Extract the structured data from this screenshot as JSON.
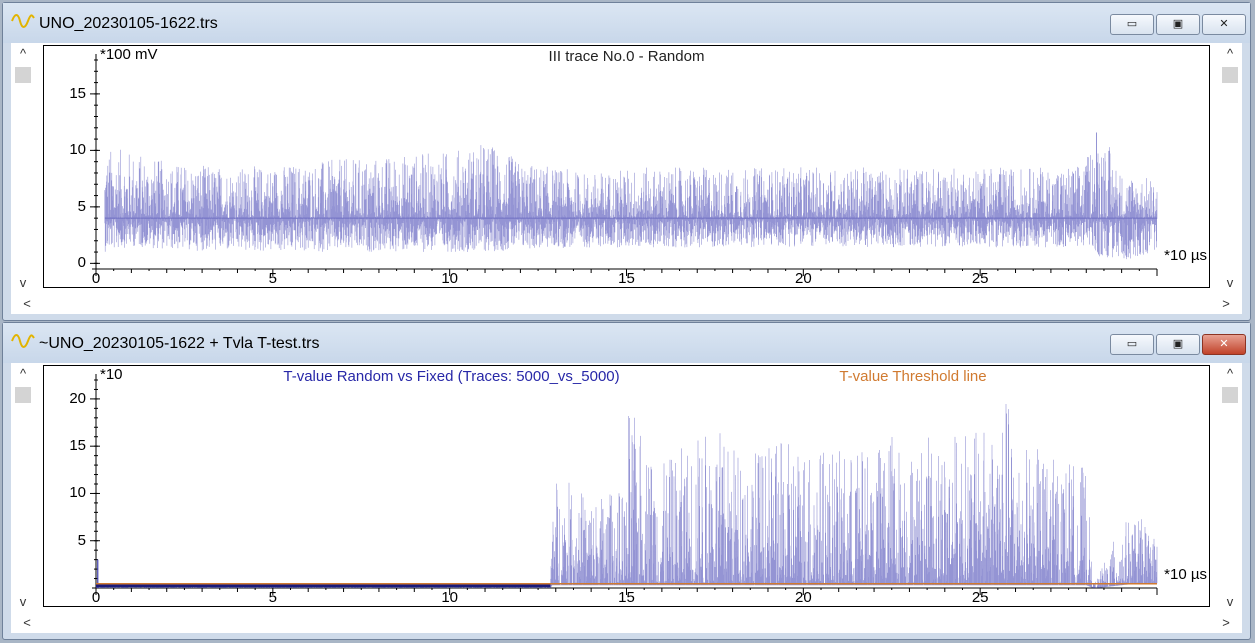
{
  "windows": [
    {
      "title": "UNO_20230105-1622.trs",
      "close_active": false,
      "y_unit": "*100 mV",
      "x_unit": "*10 µs",
      "plot_title": "III trace No.0 - Random",
      "secondary_title": "",
      "colors": {
        "trace": "#3d3db0",
        "title": "#222222",
        "threshold": "#d07a30"
      }
    },
    {
      "title": "~UNO_20230105-1622 + Tvla T-test.trs",
      "close_active": true,
      "y_unit": "*10",
      "x_unit": "*10 µs",
      "plot_title": "T-value Random vs Fixed (Traces: 5000_vs_5000)",
      "secondary_title": "T-value Threshold line",
      "colors": {
        "trace": "#3d3db0",
        "title": "#2828a8",
        "threshold": "#d07a30"
      }
    }
  ],
  "window_controls": {
    "minimize_icon": "minimize-icon",
    "maximize_icon": "maximize-icon",
    "close_icon": "close-icon"
  },
  "scroll_arrows": {
    "up": "^",
    "down": "v",
    "left": "<",
    "right": ">"
  },
  "chart_data": [
    {
      "type": "line",
      "title": "III trace No.0 - Random",
      "xlabel": "*10 µs",
      "ylabel": "*100 mV",
      "xlim": [
        0,
        30
      ],
      "ylim": [
        -0.5,
        18
      ],
      "xticks": [
        0,
        5,
        10,
        15,
        20,
        25
      ],
      "yticks": [
        0,
        5,
        10,
        15
      ],
      "grid": false,
      "series": [
        {
          "name": "",
          "envelope": {
            "x": [
              0.25,
              1,
              2,
              4,
              6,
              8,
              10,
              11.1,
              12,
              14,
              15,
              16,
              18,
              20,
              22,
              24,
              26,
              27.5,
              28,
              28.3,
              29,
              30
            ],
            "low": [
              1.0,
              1.5,
              1.2,
              1.0,
              1.0,
              1.0,
              1.0,
              1.0,
              1.2,
              1.4,
              1.4,
              1.4,
              1.4,
              1.5,
              1.4,
              1.5,
              1.4,
              1.4,
              1.6,
              0.5,
              0.2,
              1.0
            ],
            "high": [
              10.3,
              10.0,
              9.0,
              8.5,
              9.0,
              9.5,
              10.0,
              10.8,
              9.0,
              8.0,
              8.5,
              8.5,
              8.5,
              8.5,
              8.5,
              8.5,
              8.5,
              8.6,
              9.0,
              13.0,
              8.0,
              7.5
            ],
            "mean": 4.0
          }
        }
      ]
    },
    {
      "type": "line",
      "title": "T-value Random vs Fixed (Traces: 5000_vs_5000)",
      "xlabel": "*10 µs",
      "ylabel": "*10",
      "xlim": [
        0,
        30
      ],
      "ylim": [
        0,
        22
      ],
      "xticks": [
        0,
        5,
        10,
        15,
        20,
        25
      ],
      "yticks": [
        5,
        10,
        15,
        20
      ],
      "grid": false,
      "series": [
        {
          "name": "T-value Random vs Fixed (Traces: 5000_vs_5000)",
          "envelope": {
            "x": [
              0,
              12.85,
              12.9,
              14,
              15,
              15.05,
              16,
              17,
              17.5,
              18,
              19,
              20,
              21,
              22,
              22.5,
              23,
              24,
              25,
              25.7,
              26,
              27,
              28,
              28.2,
              28.3,
              29,
              29.5,
              30
            ],
            "low": [
              0,
              0,
              0.3,
              0.3,
              0.3,
              0.3,
              0.3,
              0.3,
              0.3,
              0.3,
              0.3,
              0.3,
              0.3,
              0.3,
              0.3,
              0.3,
              0.3,
              0.3,
              0.3,
              0.3,
              0.3,
              0.3,
              0,
              0,
              0.3,
              0.5,
              0.5
            ],
            "high": [
              0.5,
              0.5,
              12.2,
              10.0,
              10.5,
              19.2,
              13.0,
              16.5,
              17.2,
              15.5,
              15.0,
              16.0,
              14.5,
              15.0,
              17.0,
              15.0,
              17.0,
              16.5,
              21.2,
              16.0,
              14.0,
              13.0,
              0.5,
              1.0,
              7.0,
              7.5,
              6.0
            ],
            "peak_x0": 0.05,
            "peak_y0": 3.0
          }
        },
        {
          "name": "T-value Threshold line",
          "x": [
            0,
            30
          ],
          "y": [
            0.45,
            0.45
          ]
        }
      ]
    }
  ]
}
